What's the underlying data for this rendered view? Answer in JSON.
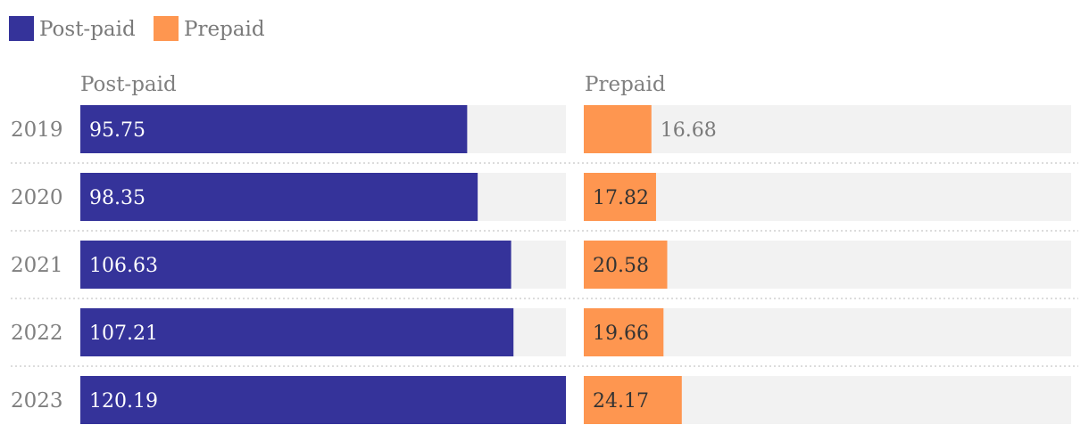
{
  "chart_data": {
    "type": "bar",
    "orientation": "horizontal",
    "layout": "small-multiples",
    "categories": [
      "2019",
      "2020",
      "2021",
      "2022",
      "2023"
    ],
    "series": [
      {
        "name": "Post-paid",
        "color": "#35339a",
        "values": [
          95.75,
          98.35,
          106.63,
          107.21,
          120.19
        ],
        "xlim": [
          0,
          120.19
        ]
      },
      {
        "name": "Prepaid",
        "color": "#fe9650",
        "values": [
          16.68,
          17.82,
          20.58,
          19.66,
          24.17
        ],
        "xlim": [
          0,
          120.19
        ]
      }
    ],
    "legend": {
      "position": "top-left",
      "entries": [
        "Post-paid",
        "Prepaid"
      ]
    },
    "title": "",
    "xlabel": "",
    "ylabel": "",
    "grid": false,
    "colors": {
      "track": "#f2f2f2",
      "separator": "#c8c8c8",
      "label_inside_dark": "#ffffff",
      "label_inside_light": "#333333",
      "label_outside": "#7a7a7a"
    }
  }
}
